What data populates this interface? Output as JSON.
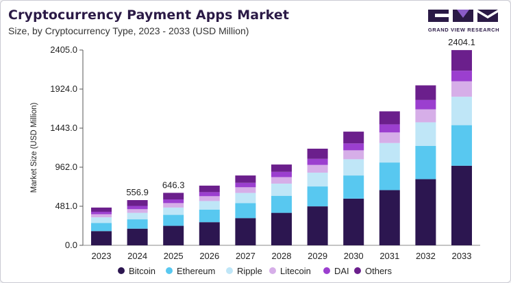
{
  "header": {
    "title": "Cryptocurrency Payment Apps Market",
    "subtitle": "Size, by Cryptocurrency Type, 2023 - 2033 (USD Million)"
  },
  "logo": {
    "text": "GRAND VIEW RESEARCH",
    "icon": "grand-view-research-logo",
    "color": "#2b1a46"
  },
  "chart_data": {
    "type": "bar",
    "stacked": true,
    "title": "",
    "xlabel": "",
    "ylabel": "Market Size (USD Million)",
    "ylim": [
      0,
      2405
    ],
    "yticks": [
      "0.0",
      "481.0",
      "962.0",
      "1443.0",
      "1924.0",
      "2405.0"
    ],
    "grid": false,
    "legend_position": "bottom",
    "categories": [
      "2023",
      "2024",
      "2025",
      "2026",
      "2027",
      "2028",
      "2029",
      "2030",
      "2031",
      "2032",
      "2033"
    ],
    "series": [
      {
        "name": "Bitcoin",
        "color": "#2c1650",
        "values": [
          175,
          205,
          240,
          285,
          335,
          400,
          480,
          575,
          680,
          815,
          980
        ]
      },
      {
        "name": "Ethereum",
        "color": "#58c8f0",
        "values": [
          100,
          115,
          135,
          155,
          185,
          210,
          245,
          285,
          340,
          410,
          500
        ]
      },
      {
        "name": "Ripple",
        "color": "#bfe6f7",
        "values": [
          70,
          80,
          90,
          105,
          125,
          150,
          170,
          200,
          240,
          290,
          350
        ]
      },
      {
        "name": "Litecoin",
        "color": "#d6aee8",
        "values": [
          38,
          45,
          55,
          60,
          70,
          80,
          95,
          110,
          130,
          160,
          190
        ]
      },
      {
        "name": "DAI",
        "color": "#9b3fcf",
        "values": [
          30,
          40,
          45,
          50,
          55,
          65,
          75,
          85,
          100,
          115,
          130
        ]
      },
      {
        "name": "Others",
        "color": "#6b1f8c",
        "values": [
          52,
          71.9,
          81.3,
          80,
          90,
          90,
          125,
          145,
          160,
          180,
          254.1
        ]
      }
    ],
    "data_labels": [
      {
        "category": "2024",
        "text": "556.9"
      },
      {
        "category": "2025",
        "text": "646.3"
      },
      {
        "category": "2033",
        "text": "2404.1"
      }
    ]
  }
}
